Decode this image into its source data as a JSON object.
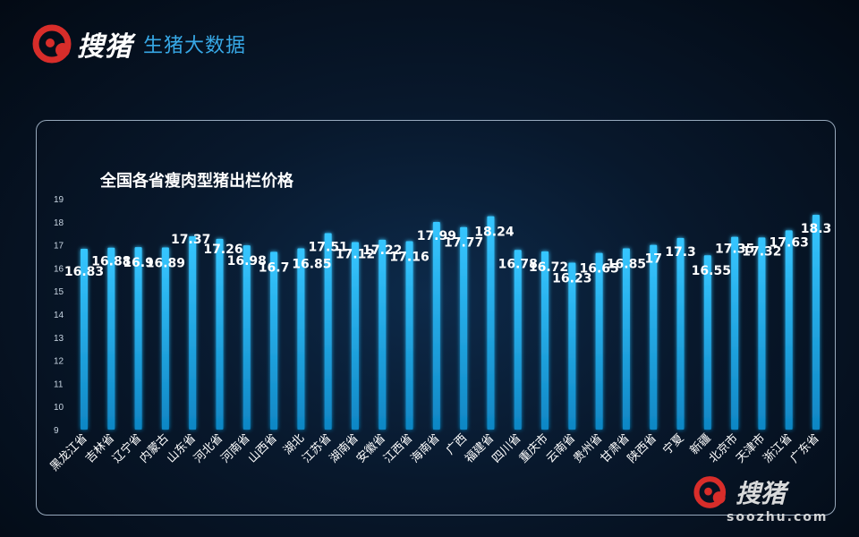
{
  "header": {
    "logo_text": "搜猪",
    "subtitle": "生猪大数据"
  },
  "watermark": {
    "logo_text": "搜猪",
    "url": "soozhu.com"
  },
  "colors": {
    "bar": "#1fb3ee",
    "brand_red": "#d82d2a",
    "brand_blue": "#37a8e6"
  },
  "chart_data": {
    "type": "bar",
    "title": "全国各省瘦肉型猪出栏价格",
    "xlabel": "",
    "ylabel": "",
    "ylim": [
      9,
      19
    ],
    "yticks": [
      9,
      10,
      11,
      12,
      13,
      14,
      15,
      16,
      17,
      18,
      19
    ],
    "grid": false,
    "categories": [
      "黑龙江省",
      "吉林省",
      "辽宁省",
      "内蒙古",
      "山东省",
      "河北省",
      "河南省",
      "山西省",
      "湖北",
      "江苏省",
      "湖南省",
      "安徽省",
      "江西省",
      "海南省",
      "广西",
      "福建省",
      "四川省",
      "重庆市",
      "云南省",
      "贵州省",
      "甘肃省",
      "陕西省",
      "宁夏",
      "新疆",
      "北京市",
      "天津市",
      "浙江省",
      "广东省"
    ],
    "values": [
      16.83,
      16.88,
      16.9,
      16.89,
      17.37,
      17.26,
      16.98,
      16.7,
      16.85,
      17.51,
      17.12,
      17.22,
      17.16,
      17.99,
      17.77,
      18.24,
      16.78,
      16.72,
      16.23,
      16.65,
      16.85,
      17,
      17.3,
      16.55,
      17.35,
      17.32,
      17.63,
      18.3
    ],
    "data_labels": [
      "16.83",
      "16.88",
      "16.9",
      "16.89",
      "17.37",
      "17.26",
      "16.98",
      "16.7",
      "16.85",
      "17.51",
      "17.12",
      "17.22",
      "17.16",
      "17.99",
      "17.77",
      "18.24",
      "16.78",
      "16.72",
      "16.23",
      "16.65",
      "16.85",
      "17",
      "17.3",
      "16.55",
      "17.35",
      "17.32",
      "17.63",
      "18.3"
    ]
  }
}
